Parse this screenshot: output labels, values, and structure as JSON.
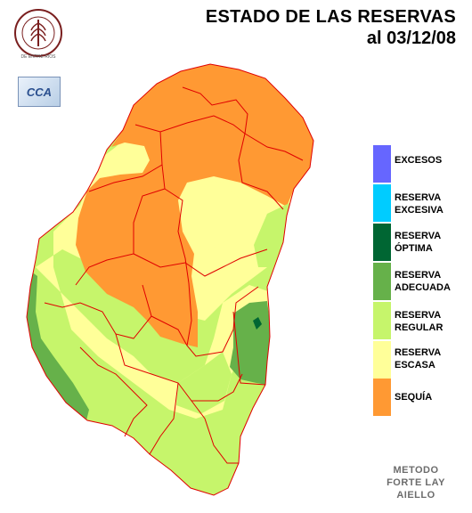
{
  "header": {
    "title": "ESTADO DE LAS RESERVAS",
    "date_line": "al 03/12/08"
  },
  "logos": {
    "bolsa": {
      "arc_text": "BOLSA DE CEREALES",
      "bottom_text": "DE ENTRE RIOS"
    },
    "cca": "CCA"
  },
  "legend": [
    {
      "label": "EXCESOS",
      "color": "#6666ff"
    },
    {
      "label": "RESERVA\nEXCESIVA",
      "color": "#00ccff"
    },
    {
      "label": "RESERVA\nÓPTIMA",
      "color": "#006633"
    },
    {
      "label": "RESERVA\nADECUADA",
      "color": "#66b14a"
    },
    {
      "label": "RESERVA\nREGULAR",
      "color": "#c6f56b"
    },
    {
      "label": "RESERVA\nESCASA",
      "color": "#ffff99"
    },
    {
      "label": "SEQUÍA",
      "color": "#ff9933"
    }
  ],
  "method": [
    "METODO",
    "FORTE LAY",
    "AIELLO"
  ],
  "colors": {
    "sequia": "#ff9933",
    "escasa": "#ffff99",
    "regular": "#c6f56b",
    "adecuada": "#66b14a",
    "optima": "#006633",
    "border": "#e00000"
  }
}
